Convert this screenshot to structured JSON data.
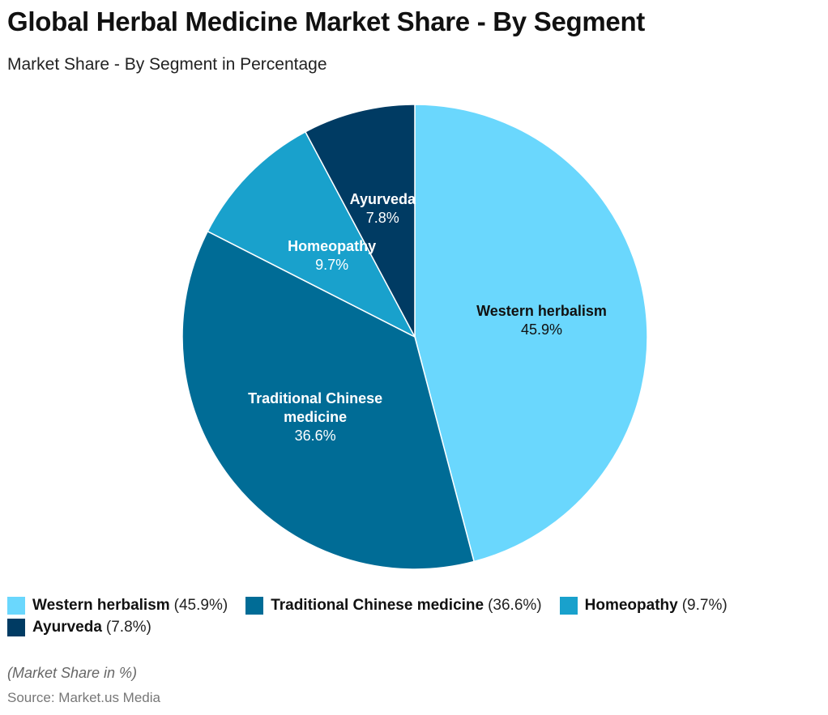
{
  "chart_data": {
    "type": "pie",
    "title": "Global Herbal Medicine Market Share - By Segment",
    "subtitle": "Market Share - By Segment in Percentage",
    "unit": "%",
    "slices": [
      {
        "name": "Western herbalism",
        "value": 45.9,
        "label": "45.9%",
        "label_lines": [
          "Western herbalism"
        ],
        "color": "#6AD7FD",
        "text_color": "#111111"
      },
      {
        "name": "Traditional Chinese medicine",
        "value": 36.6,
        "label": "36.6%",
        "label_lines": [
          "Traditional Chinese",
          "medicine"
        ],
        "color": "#006C96",
        "text_color": "#ffffff"
      },
      {
        "name": "Homeopathy",
        "value": 9.7,
        "label": "9.7%",
        "label_lines": [
          "Homeopathy"
        ],
        "color": "#19A1CC",
        "text_color": "#ffffff"
      },
      {
        "name": "Ayurveda",
        "value": 7.8,
        "label": "7.8%",
        "label_lines": [
          "Ayurveda"
        ],
        "color": "#003B63",
        "text_color": "#ffffff"
      }
    ],
    "legend": [
      {
        "name": "Western herbalism",
        "value": "(45.9%)"
      },
      {
        "name": "Traditional Chinese medicine",
        "value": "(36.6%)"
      },
      {
        "name": "Homeopathy",
        "value": "(9.7%)"
      },
      {
        "name": "Ayurveda",
        "value": "(7.8%)"
      }
    ],
    "legend_position": "bottom"
  },
  "note": "(Market Share in %)",
  "source": "Source: Market.us Media"
}
